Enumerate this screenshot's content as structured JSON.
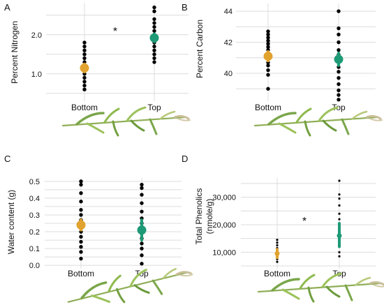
{
  "colors": {
    "bottom": "#E1A22E",
    "top": "#1E9A77",
    "points": "#000000",
    "grid": "#DCDCDC"
  },
  "chart_data": [
    {
      "id": "A",
      "panel_letter": "A",
      "type": "scatter",
      "ylabel": "Percent Nitrogen",
      "categories": [
        "Bottom",
        "Top"
      ],
      "yticks": [
        1.0,
        2.0
      ],
      "ytick_labels": [
        "1.0",
        "2.0"
      ],
      "ylim": [
        0.3,
        2.8
      ],
      "significance": "*",
      "points": [
        [
          1.8,
          1.7,
          1.6,
          1.5,
          1.4,
          1.3,
          1.2,
          1.1,
          1.0,
          0.9,
          0.8,
          0.7,
          0.6
        ],
        [
          2.7,
          2.6,
          2.4,
          2.3,
          2.2,
          2.1,
          2.0,
          1.9,
          1.8,
          1.7,
          1.6,
          1.5,
          1.4,
          1.3
        ]
      ],
      "means": [
        1.15,
        1.92
      ],
      "errors": [
        [
          1.05,
          1.25
        ],
        [
          1.82,
          2.02
        ]
      ]
    },
    {
      "id": "B",
      "panel_letter": "B",
      "type": "scatter",
      "ylabel": "Percent Carbon",
      "categories": [
        "Bottom",
        "Top"
      ],
      "yticks": [
        40,
        42,
        44
      ],
      "ytick_labels": [
        "40",
        "42",
        "44"
      ],
      "ylim": [
        38.2,
        44.5
      ],
      "significance": "",
      "points": [
        [
          42.7,
          42.5,
          42.3,
          42.1,
          41.9,
          41.7,
          41.5,
          41.3,
          41.1,
          40.9,
          40.7,
          40.5,
          40.2,
          39.9,
          39.0
        ],
        [
          44.0,
          42.9,
          42.5,
          42.0,
          41.5,
          41.2,
          41.0,
          40.7,
          40.4,
          40.1,
          39.7,
          39.3,
          38.9,
          38.6,
          38.3
        ]
      ],
      "means": [
        41.1,
        40.9
      ],
      "errors": [
        [
          40.8,
          41.4
        ],
        [
          40.5,
          41.3
        ]
      ]
    },
    {
      "id": "C",
      "panel_letter": "C",
      "type": "scatter",
      "ylabel": "Water content (g)",
      "categories": [
        "Bottom",
        "Top"
      ],
      "yticks": [
        0.0,
        0.1,
        0.2,
        0.3,
        0.4,
        0.5
      ],
      "ytick_labels": [
        "0.0",
        "0.1",
        "0.2",
        "0.3",
        "0.4",
        "0.5"
      ],
      "ylim": [
        -0.02,
        0.52
      ],
      "significance": "",
      "points": [
        [
          0.5,
          0.48,
          0.43,
          0.38,
          0.33,
          0.3,
          0.27,
          0.25,
          0.22,
          0.2,
          0.17,
          0.14,
          0.11,
          0.08,
          0.04
        ],
        [
          0.48,
          0.46,
          0.42,
          0.37,
          0.32,
          0.28,
          0.25,
          0.23,
          0.21,
          0.19,
          0.16,
          0.13,
          0.1,
          0.06,
          0.01
        ]
      ],
      "means": [
        0.24,
        0.21
      ],
      "errors": [
        [
          0.21,
          0.27
        ],
        [
          0.15,
          0.27
        ]
      ]
    },
    {
      "id": "D",
      "panel_letter": "D",
      "type": "scatter",
      "ylabel": "Total Phenolics (nmole/g)",
      "categories": [
        "Bottom",
        "Top"
      ],
      "yticks": [
        10000,
        20000,
        30000
      ],
      "ytick_labels": [
        "10,000",
        "20,000",
        "30,000"
      ],
      "ylim": [
        4000,
        37000
      ],
      "significance": "*",
      "points": [
        [
          14500,
          13500,
          12500,
          11500,
          10500,
          9500,
          8500,
          7500,
          6500
        ],
        [
          36000,
          31000,
          29500,
          27000,
          24000,
          22000,
          20000,
          18000,
          16000,
          14000,
          12000,
          10000,
          8500
        ]
      ],
      "means": [
        9500,
        16000
      ],
      "errors": [
        [
          8000,
          11000
        ],
        [
          12000,
          20500
        ]
      ]
    }
  ]
}
